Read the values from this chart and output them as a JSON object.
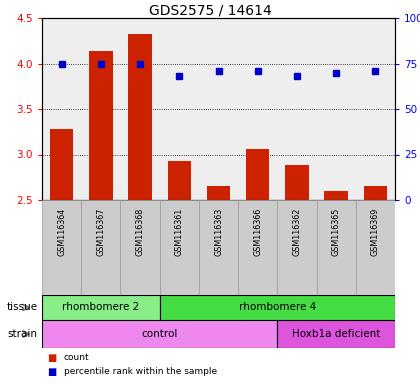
{
  "title": "GDS2575 / 14614",
  "samples": [
    "GSM116364",
    "GSM116367",
    "GSM116368",
    "GSM116361",
    "GSM116363",
    "GSM116366",
    "GSM116362",
    "GSM116365",
    "GSM116369"
  ],
  "counts": [
    3.28,
    4.14,
    4.32,
    2.93,
    2.65,
    3.06,
    2.88,
    2.6,
    2.65
  ],
  "percentiles": [
    75,
    75,
    75,
    68,
    71,
    71,
    68,
    70,
    71
  ],
  "ylim_left": [
    2.5,
    4.5
  ],
  "ylim_right": [
    0,
    100
  ],
  "yticks_left": [
    2.5,
    3.0,
    3.5,
    4.0,
    4.5
  ],
  "yticks_right": [
    0,
    25,
    50,
    75,
    100
  ],
  "ytick_right_labels": [
    "0",
    "25",
    "50",
    "75",
    "100%"
  ],
  "bar_color": "#cc2200",
  "dot_color": "#0000cc",
  "bar_baseline": 2.5,
  "tissue_groups": [
    {
      "label": "rhombomere 2",
      "start": 0,
      "end": 3,
      "color": "#88ee88"
    },
    {
      "label": "rhombomere 4",
      "start": 3,
      "end": 9,
      "color": "#44dd44"
    }
  ],
  "strain_groups": [
    {
      "label": "control",
      "start": 0,
      "end": 6,
      "color": "#ee88ee"
    },
    {
      "label": "Hoxb1a deficient",
      "start": 6,
      "end": 9,
      "color": "#dd55dd"
    }
  ],
  "sample_bg_color": "#cccccc",
  "sample_border_color": "#999999",
  "plot_bg_color": "#eeeeee",
  "legend_items": [
    {
      "color": "#cc2200",
      "label": "count"
    },
    {
      "color": "#0000cc",
      "label": "percentile rank within the sample"
    }
  ],
  "row_label_tissue": "tissue",
  "row_label_strain": "strain"
}
